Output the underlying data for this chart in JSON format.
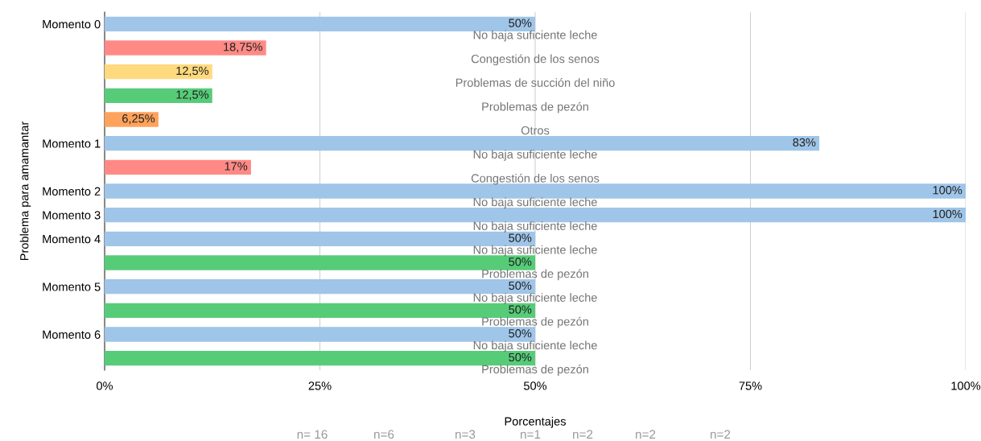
{
  "chart_data": {
    "type": "bar",
    "orientation": "horizontal",
    "xlabel": "Porcentajes",
    "ylabel": "Problema para amamantar",
    "categories": [
      "Momento 0",
      null,
      null,
      null,
      null,
      "Momento 1",
      null,
      "Momento 2",
      "Momento 3",
      "Momento 4",
      null,
      "Momento 5",
      null,
      "Momento 6",
      null
    ],
    "values": [
      50,
      18.75,
      12.5,
      12.5,
      6.25,
      83,
      17,
      100,
      100,
      50,
      50,
      50,
      50,
      50,
      50
    ],
    "colors": [
      "#9fc5e8",
      "#ff8a85",
      "#ffd97d",
      "#57cc78",
      "#ffa25c",
      "#9fc5e8",
      "#ff8a85",
      "#9fc5e8",
      "#9fc5e8",
      "#9fc5e8",
      "#57cc78",
      "#9fc5e8",
      "#57cc78",
      "#9fc5e8",
      "#57cc78"
    ],
    "value_labels": [
      "50%",
      "18,75%",
      "12,5%",
      "12,5%",
      "6,25%",
      "83%",
      "17%",
      "100%",
      "100%",
      "50%",
      "50%",
      "50%",
      "50%",
      "50%",
      "50%"
    ],
    "annotations": [
      "No baja suficiente leche",
      "Congestión de los senos",
      "Problemas de succión del niño",
      "Problemas de pezón",
      "Otros",
      "No baja suficiente leche",
      "Congestión de los senos",
      "No baja suficiente leche",
      "No baja suficiente leche",
      "No baja suficiente leche",
      "Problemas de pezón",
      "No baja suficiente leche",
      "Problemas de pezón",
      "No baja suficiente leche",
      "Problemas de pezón",
      "n= 16",
      "n=6",
      "n=3",
      "n=1",
      "n=2",
      "n=2",
      "n=2"
    ],
    "xlim": [
      0,
      100
    ],
    "xticks": [
      {
        "value": 0,
        "label": "0%"
      },
      {
        "value": 25,
        "label": "25%"
      },
      {
        "value": 50,
        "label": "50%"
      },
      {
        "value": 75,
        "label": "75%"
      },
      {
        "value": 100,
        "label": "100%"
      }
    ],
    "grid": "x"
  }
}
